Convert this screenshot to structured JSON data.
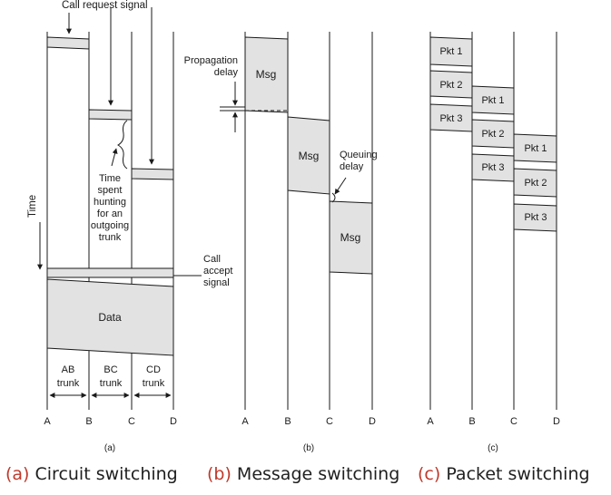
{
  "panel_a": {
    "call_request": "Call request signal",
    "time_axis": "Time",
    "hunting": [
      "Time",
      "spent",
      "hunting",
      "for an",
      "outgoing",
      "trunk"
    ],
    "call_accept": [
      "Call",
      "accept",
      "signal"
    ],
    "data_block": "Data",
    "trunks": [
      {
        "line1": "AB",
        "line2": "trunk"
      },
      {
        "line1": "BC",
        "line2": "trunk"
      },
      {
        "line1": "CD",
        "line2": "trunk"
      }
    ],
    "nodes": [
      "A",
      "B",
      "C",
      "D"
    ],
    "sublabel": "(a)"
  },
  "panel_b": {
    "propagation": [
      "Propagation",
      "delay"
    ],
    "queuing": [
      "Queuing",
      "delay"
    ],
    "messages": [
      "Msg",
      "Msg",
      "Msg"
    ],
    "nodes": [
      "A",
      "B",
      "C",
      "D"
    ],
    "sublabel": "(b)"
  },
  "panel_c": {
    "packets_ab": [
      "Pkt 1",
      "Pkt 2",
      "Pkt 3"
    ],
    "packets_bc": [
      "Pkt 1",
      "Pkt 2",
      "Pkt 3"
    ],
    "packets_cd": [
      "Pkt 1",
      "Pkt 2",
      "Pkt 3"
    ],
    "nodes": [
      "A",
      "B",
      "C",
      "D"
    ],
    "sublabel": "(c)"
  },
  "captions": [
    {
      "tag": "(a)",
      "text": " Circuit switching"
    },
    {
      "tag": "(b)",
      "text": " Message switching"
    },
    {
      "tag": "(c)",
      "text": " Packet switching"
    }
  ],
  "colors": {
    "fill": "#e2e2e2",
    "line": "#1a1a1a",
    "caption_tag": "#c0392b"
  }
}
